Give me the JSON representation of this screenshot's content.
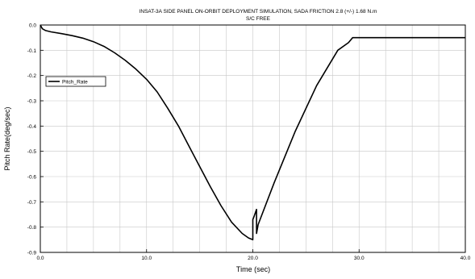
{
  "chart_data": {
    "type": "line",
    "title": "INSAT-3A SIDE PANEL ON-ORBIT DEPLOYMENT SIMULATION, SADA FRICTION 2.8 (+/-) 1.68 N.m",
    "subtitle": "S/C FREE",
    "xlabel": "Time (sec)",
    "ylabel": "Pitch Rate(deg/sec)",
    "xlim": [
      0,
      40
    ],
    "ylim": [
      -0.9,
      0.0
    ],
    "x_ticks": [
      0,
      10,
      20,
      30,
      40
    ],
    "x_tick_labels": [
      "0.0",
      "10.0",
      "20.0",
      "30.0",
      "40.0"
    ],
    "y_ticks": [
      0.0,
      -0.1,
      -0.2,
      -0.3,
      -0.4,
      -0.5,
      -0.6,
      -0.7,
      -0.8,
      -0.9
    ],
    "y_tick_labels": [
      "0.0",
      "-0.1",
      "-0.2",
      "-0.3",
      "-0.4",
      "-0.5",
      "-0.6",
      "-0.7",
      "-0.8",
      "-0.9"
    ],
    "grid": true,
    "legend": {
      "position": "upper-left",
      "entries": [
        "Pitch_Rate"
      ]
    },
    "series": [
      {
        "name": "Pitch_Rate",
        "color": "#000000",
        "x": [
          0.0,
          0.2,
          0.5,
          1.0,
          2.0,
          3.0,
          4.0,
          5.0,
          6.0,
          7.0,
          8.0,
          9.0,
          10.0,
          11.0,
          12.0,
          13.0,
          14.0,
          15.0,
          16.0,
          17.0,
          18.0,
          19.0,
          19.6,
          20.0,
          20.0,
          20.1,
          20.35,
          20.35,
          20.5,
          22.0,
          24.0,
          26.0,
          28.0,
          29.0,
          29.4,
          30.0,
          35.0,
          40.0
        ],
        "y": [
          0.0,
          -0.015,
          -0.022,
          -0.027,
          -0.034,
          -0.042,
          -0.052,
          -0.066,
          -0.085,
          -0.11,
          -0.14,
          -0.175,
          -0.215,
          -0.265,
          -0.33,
          -0.4,
          -0.48,
          -0.56,
          -0.64,
          -0.715,
          -0.78,
          -0.825,
          -0.843,
          -0.85,
          -0.77,
          -0.76,
          -0.73,
          -0.825,
          -0.79,
          -0.625,
          -0.42,
          -0.24,
          -0.1,
          -0.07,
          -0.05,
          -0.05,
          -0.05,
          -0.05
        ]
      }
    ]
  }
}
